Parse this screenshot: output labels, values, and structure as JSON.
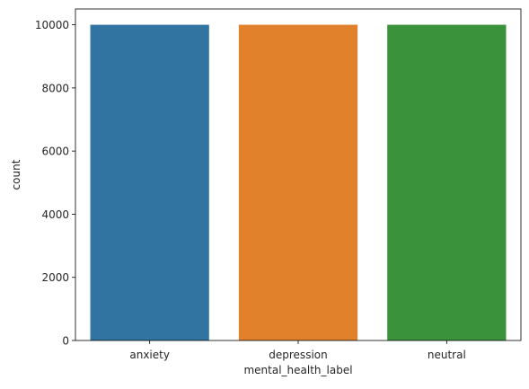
{
  "chart_data": {
    "type": "bar",
    "title": "",
    "xlabel": "mental_health_label",
    "ylabel": "count",
    "categories": [
      "anxiety",
      "depression",
      "neutral"
    ],
    "values": [
      10000,
      10000,
      10000
    ],
    "colors": [
      "#3274a1",
      "#e1812c",
      "#3a923a"
    ],
    "ylim": [
      0,
      10500
    ],
    "yticks": [
      0,
      2000,
      4000,
      6000,
      8000,
      10000
    ],
    "grid": false,
    "legend": "none"
  }
}
